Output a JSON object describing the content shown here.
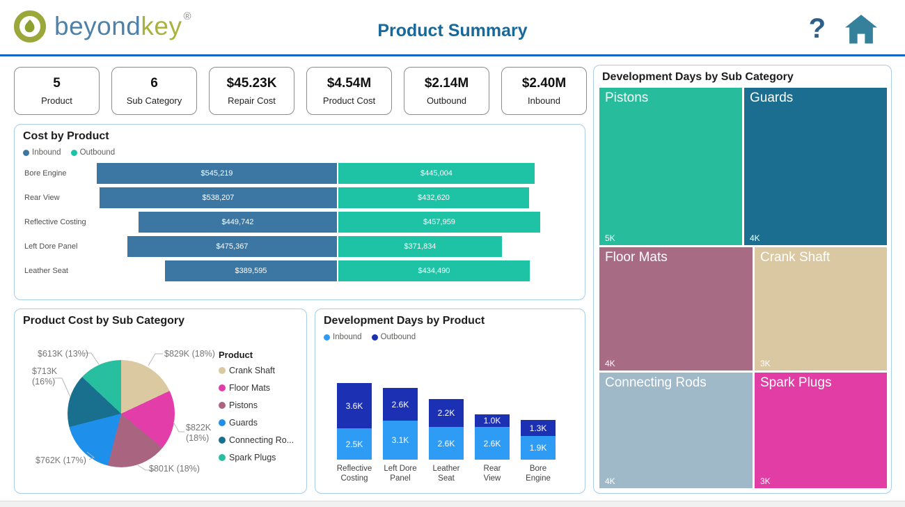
{
  "header": {
    "logo_part1": "beyond",
    "logo_part2": "key",
    "registered_mark": "®",
    "title": "Product Summary",
    "help_glyph": "?"
  },
  "kpis": [
    {
      "value": "5",
      "label": "Product"
    },
    {
      "value": "6",
      "label": "Sub Category"
    },
    {
      "value": "$45.23K",
      "label": "Repair Cost"
    },
    {
      "value": "$4.54M",
      "label": "Product Cost"
    },
    {
      "value": "$2.14M",
      "label": "Outbound"
    },
    {
      "value": "$2.40M",
      "label": "Inbound"
    }
  ],
  "chart_data": [
    {
      "type": "bar",
      "orientation": "horizontal-diverging-stacked",
      "title": "Cost by Product",
      "categories": [
        "Bore Engine",
        "Rear View",
        "Reflective Costing",
        "Left Dore Panel",
        "Leather Seat"
      ],
      "series": [
        {
          "name": "Inbound",
          "color": "#3c76a3",
          "values": [
            545219,
            538207,
            449742,
            475367,
            389595
          ],
          "labels": [
            "$545,219",
            "$538,207",
            "$449,742",
            "$475,367",
            "$389,595"
          ]
        },
        {
          "name": "Outbound",
          "color": "#1dc3a4",
          "values": [
            445004,
            432620,
            457959,
            371834,
            434490
          ],
          "labels": [
            "$445,004",
            "$432,620",
            "$457,959",
            "$371,834",
            "$434,490"
          ]
        }
      ]
    },
    {
      "type": "pie",
      "title": "Product Cost by Sub Category",
      "legend_title": "Product",
      "legend_position": "right",
      "slices": [
        {
          "name": "Crank Shaft",
          "legend_label": "Crank Shaft",
          "callout": "$829K (18%)",
          "value_label": "$829K",
          "pct": 18,
          "color": "#dbc9a2"
        },
        {
          "name": "Floor Mats",
          "legend_label": "Floor Mats",
          "callout": "$822K (18%)",
          "value_label": "$822K",
          "pct": 18,
          "color": "#e23da8"
        },
        {
          "name": "Pistons",
          "legend_label": "Pistons",
          "callout": "$801K (18%)",
          "value_label": "$801K",
          "pct": 18,
          "color": "#a9647f"
        },
        {
          "name": "Guards",
          "legend_label": "Guards",
          "callout": "$762K (17%)",
          "value_label": "$762K",
          "pct": 17,
          "color": "#1e90ec"
        },
        {
          "name": "Connecting Rods",
          "legend_label": "Connecting Ro...",
          "callout": "$713K (16%)",
          "value_label": "$713K",
          "pct": 16,
          "color": "#19708e"
        },
        {
          "name": "Spark Plugs",
          "legend_label": "Spark Plugs",
          "callout": "$613K (13%)",
          "value_label": "$613K",
          "pct": 13,
          "color": "#28bfa0"
        }
      ]
    },
    {
      "type": "bar",
      "orientation": "vertical-stacked",
      "title": "Development Days by Product",
      "categories": [
        "Reflective Costing",
        "Left Dore Panel",
        "Leather Seat",
        "Rear View",
        "Bore Engine"
      ],
      "unit": "K days",
      "series": [
        {
          "name": "Inbound",
          "color": "#2e9bf5",
          "values_k": [
            2.5,
            3.1,
            2.6,
            2.6,
            1.9
          ],
          "labels": [
            "2.5K",
            "3.1K",
            "2.6K",
            "2.6K",
            "1.9K"
          ]
        },
        {
          "name": "Outbound",
          "color": "#1b30b2",
          "values_k": [
            3.6,
            2.6,
            2.2,
            1.0,
            1.3
          ],
          "labels": [
            "3.6K",
            "2.6K",
            "2.2K",
            "1.0K",
            "1.3K"
          ]
        }
      ]
    },
    {
      "type": "treemap",
      "title": "Development Days by Sub Category",
      "tiles": [
        {
          "name": "Pistons",
          "value_label": "5K",
          "color": "#27bd9c"
        },
        {
          "name": "Guards",
          "value_label": "4K",
          "color": "#1b6e90"
        },
        {
          "name": "Floor Mats",
          "value_label": "4K",
          "color": "#a76b84"
        },
        {
          "name": "Crank Shaft",
          "value_label": "3K",
          "color": "#d9c8a2"
        },
        {
          "name": "Connecting Rods",
          "value_label": "4K",
          "color": "#9fb9c8"
        },
        {
          "name": "Spark Plugs",
          "value_label": "3K",
          "color": "#e23da5"
        }
      ]
    }
  ]
}
